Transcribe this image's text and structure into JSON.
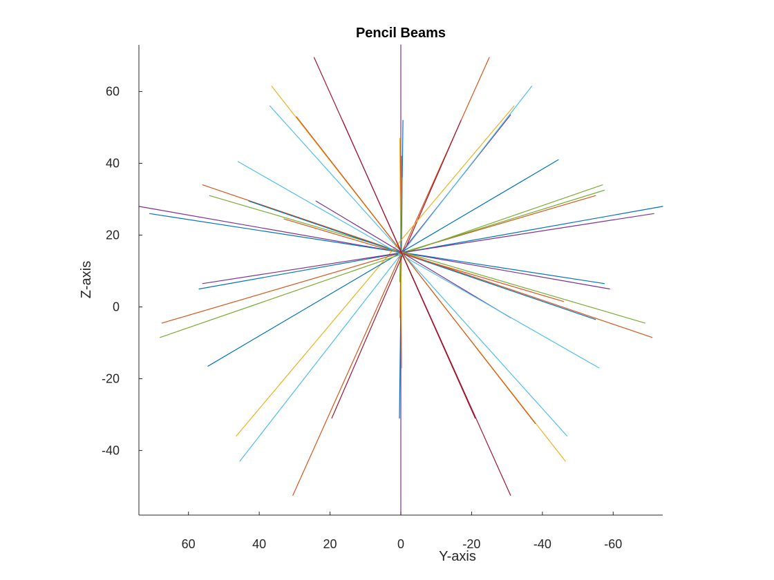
{
  "chart_data": {
    "type": "line",
    "title": "Pencil Beams",
    "xlabel": "Y-axis",
    "ylabel": "Z-axis",
    "xlim": [
      74,
      -74
    ],
    "ylim": [
      -58,
      73
    ],
    "x_reversed": true,
    "grid": false,
    "xticks": [
      60,
      40,
      20,
      0,
      -20,
      -40,
      -60
    ],
    "xtick_labels": [
      "60",
      "40",
      "20",
      "0",
      "-20",
      "-40",
      "-60"
    ],
    "yticks": [
      60,
      40,
      20,
      0,
      -20,
      -40
    ],
    "ytick_labels": [
      "60",
      "40",
      "20",
      "0",
      "-20",
      "-40"
    ],
    "center": [
      0,
      15
    ],
    "series": [
      {
        "color": "#7E2F8E",
        "points": [
          [
            0,
            -58
          ],
          [
            0,
            73
          ]
        ]
      },
      {
        "color": "#0072BD",
        "points": [
          [
            -0.6,
            52
          ],
          [
            0.4,
            -31
          ]
        ]
      },
      {
        "color": "#EDB120",
        "points": [
          [
            0.3,
            47
          ],
          [
            -0.3,
            -17
          ]
        ]
      },
      {
        "color": "#D95319",
        "points": [
          [
            -0.2,
            42
          ],
          [
            0.2,
            -3
          ]
        ]
      },
      {
        "color": "#77AC30",
        "points": [
          [
            -0.4,
            36
          ],
          [
            0.3,
            7
          ]
        ]
      },
      {
        "color": "#A2142F",
        "points": [
          [
            24.5,
            69.5
          ],
          [
            -31,
            -52.5
          ]
        ]
      },
      {
        "color": "#D95319",
        "points": [
          [
            -25,
            69.5
          ],
          [
            30.5,
            -52.5
          ]
        ]
      },
      {
        "color": "#A2142F",
        "points": [
          [
            -17,
            52
          ],
          [
            19.5,
            -31
          ]
        ]
      },
      {
        "color": "#7E2F8E",
        "points": [
          [
            -31,
            53.5
          ],
          [
            0,
            15
          ]
        ]
      },
      {
        "color": "#4DBEEE",
        "points": [
          [
            -37,
            61.5
          ],
          [
            45.5,
            -43
          ]
        ]
      },
      {
        "color": "#EDB120",
        "points": [
          [
            -32,
            56
          ],
          [
            46.5,
            -36
          ]
        ]
      },
      {
        "color": "#0072BD",
        "points": [
          [
            -44.5,
            41
          ],
          [
            54.5,
            -16.5
          ]
        ]
      },
      {
        "color": "#77AC30",
        "points": [
          [
            -57,
            34
          ],
          [
            68,
            -8.5
          ]
        ]
      },
      {
        "color": "#D95319",
        "points": [
          [
            -55,
            31
          ],
          [
            67.5,
            -4.5
          ]
        ]
      },
      {
        "color": "#77AC30",
        "points": [
          [
            -57.5,
            32.5
          ],
          [
            0,
            15
          ]
        ]
      },
      {
        "color": "#0072BD",
        "points": [
          [
            -74,
            28
          ],
          [
            57,
            5
          ]
        ]
      },
      {
        "color": "#7E2F8E",
        "points": [
          [
            -71.5,
            26
          ],
          [
            56,
            6.5
          ]
        ]
      },
      {
        "color": "#7E2F8E",
        "points": [
          [
            74,
            28
          ],
          [
            -59,
            5
          ]
        ]
      },
      {
        "color": "#0072BD",
        "points": [
          [
            71,
            26
          ],
          [
            -57.5,
            6.5
          ]
        ]
      },
      {
        "color": "#D95319",
        "points": [
          [
            56,
            34
          ],
          [
            -71,
            -8.5
          ]
        ]
      },
      {
        "color": "#77AC30",
        "points": [
          [
            54,
            31
          ],
          [
            -69,
            -4.5
          ]
        ]
      },
      {
        "color": "#0072BD",
        "points": [
          [
            43,
            29.5
          ],
          [
            -55,
            -3.5
          ]
        ]
      },
      {
        "color": "#D95319",
        "points": [
          [
            33,
            24.5
          ],
          [
            -46,
            1.5
          ]
        ]
      },
      {
        "color": "#7E2F8E",
        "points": [
          [
            24,
            29.5
          ],
          [
            -31,
            -3
          ]
        ]
      },
      {
        "color": "#4DBEEE",
        "points": [
          [
            46,
            40.5
          ],
          [
            -56,
            -17
          ]
        ]
      },
      {
        "color": "#4DBEEE",
        "points": [
          [
            37,
            56
          ],
          [
            -47,
            -36
          ]
        ]
      },
      {
        "color": "#EDB120",
        "points": [
          [
            36.5,
            61.5
          ],
          [
            -46.5,
            -43
          ]
        ]
      },
      {
        "color": "#D95319",
        "points": [
          [
            29.5,
            53
          ],
          [
            -38,
            -32.5
          ]
        ]
      },
      {
        "color": "#A2142F",
        "points": [
          [
            16.5,
            52
          ],
          [
            -21,
            -31
          ]
        ]
      }
    ]
  }
}
